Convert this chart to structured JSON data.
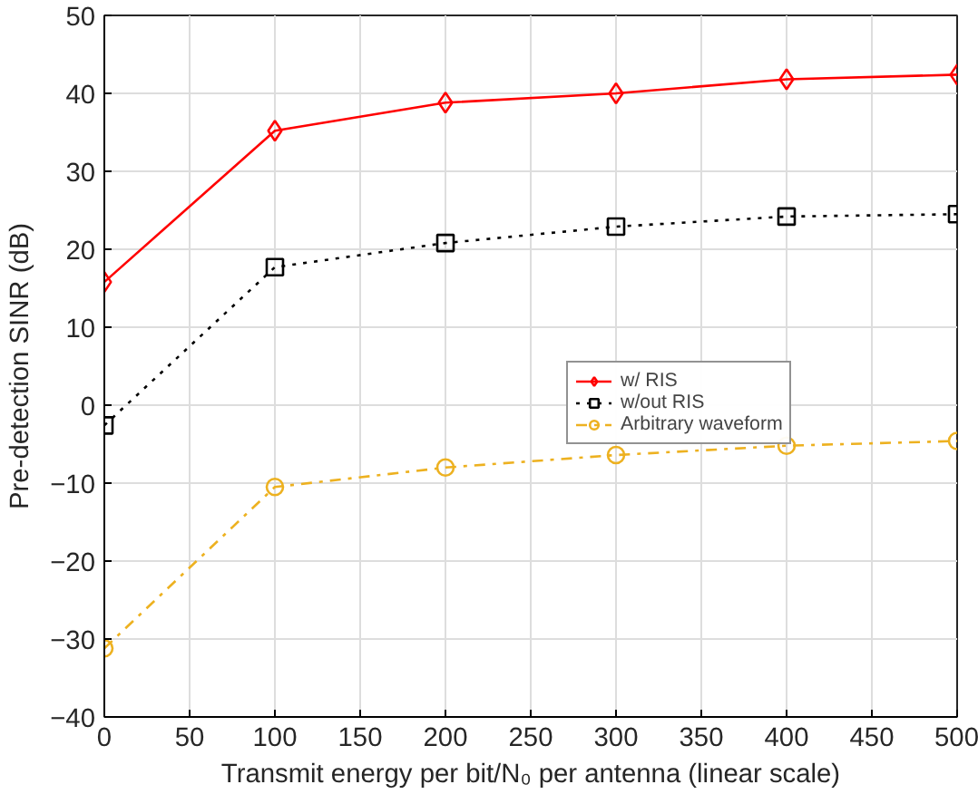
{
  "chart_data": {
    "type": "line",
    "xlabel": "Transmit energy per bit/N₀ per antenna (linear scale)",
    "ylabel": "Pre-detection SINR (dB)",
    "x": [
      0,
      100,
      200,
      300,
      400,
      500
    ],
    "xlim": [
      0,
      500
    ],
    "xticks": [
      0,
      50,
      100,
      150,
      200,
      250,
      300,
      350,
      400,
      450,
      500
    ],
    "ylim": [
      -40,
      50
    ],
    "yticks": [
      -40,
      -30,
      -20,
      -10,
      0,
      10,
      20,
      30,
      40,
      50
    ],
    "grid": true,
    "legend": "right",
    "series": [
      {
        "name": "w/ RIS",
        "color": "#ff0000",
        "marker": "diamond",
        "line_style": "solid",
        "values": [
          15.8,
          35.2,
          38.8,
          40,
          41.8,
          42.4
        ]
      },
      {
        "name": "w/out RIS",
        "color": "#000000",
        "marker": "square",
        "line_style": "dotted",
        "values": [
          -2.6,
          17.7,
          20.8,
          22.9,
          24.2,
          24.5
        ]
      },
      {
        "name": "Arbitrary waveform",
        "color": "#edb120",
        "marker": "circle",
        "line_style": "dashdot",
        "values": [
          -31.2,
          -10.5,
          -8,
          -6.4,
          -5.2,
          -4.6
        ]
      }
    ]
  }
}
